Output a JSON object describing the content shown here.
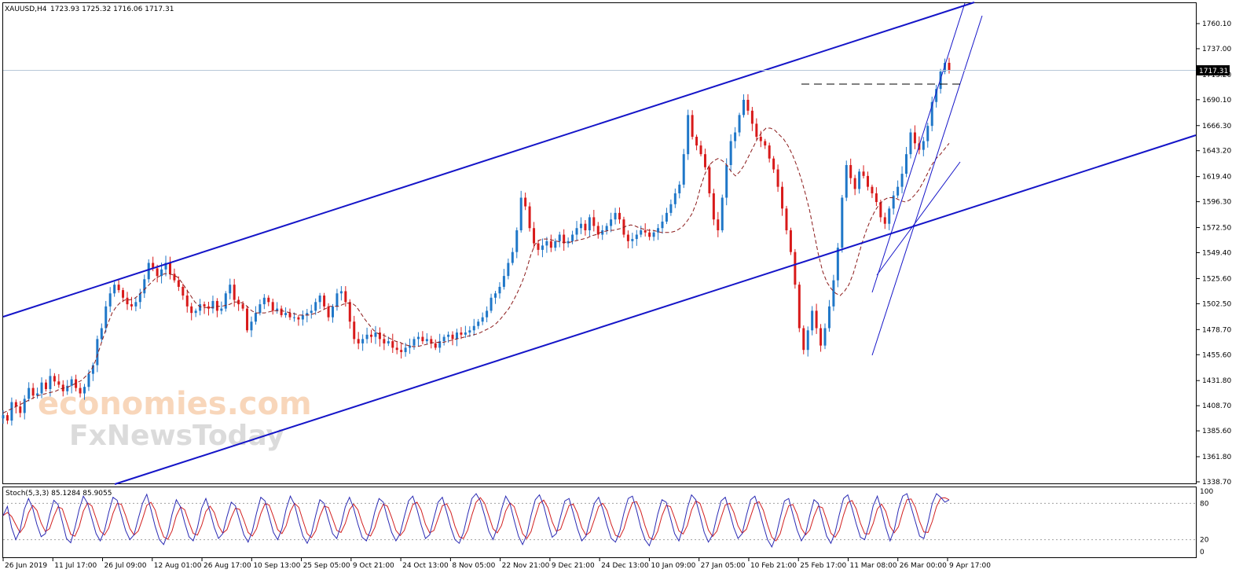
{
  "header": {
    "symbol": "XAUUSD,H4",
    "ohlc": "1723.93 1725.32 1716.06 1717.31"
  },
  "price_label": "1717.31",
  "watermark": {
    "line1": "economies.com",
    "line2": "FxNewsToday"
  },
  "stoch": {
    "label": "Stoch(5,3,3) 85.1284 85.9055",
    "levels": [
      "100",
      "80",
      "20",
      "0"
    ]
  },
  "colors": {
    "bull": "#1f77c8",
    "bear": "#d81a1a",
    "channel": "#1515c8",
    "ma": "#8b1a1a",
    "stoch_main": "#2b2bb4",
    "stoch_signal": "#d22020"
  },
  "chart_data": {
    "type": "line",
    "title": "",
    "ylabel": "",
    "xlabel": "",
    "ylim": [
      1338.7,
      1783.0
    ],
    "price_ticks": [
      "1760.10",
      "1737.00",
      "1713.20",
      "1690.10",
      "1666.30",
      "1643.20",
      "1619.40",
      "1596.30",
      "1572.50",
      "1549.40",
      "1525.60",
      "1502.50",
      "1478.70",
      "1455.60",
      "1431.80",
      "1408.70",
      "1385.60",
      "1361.80",
      "1338.70"
    ],
    "date_ticks": [
      "26 Jun 2019",
      "11 Jul 17:00",
      "26 Jul 09:00",
      "12 Aug 01:00",
      "26 Aug 17:00",
      "10 Sep 13:00",
      "25 Sep 05:00",
      "9 Oct 21:00",
      "24 Oct 13:00",
      "8 Nov 05:00",
      "22 Nov 21:00",
      "9 Dec 21:00",
      "24 Dec 13:00",
      "10 Jan 09:00",
      "27 Jan 05:00",
      "10 Feb 21:00",
      "25 Feb 17:00",
      "11 Mar 08:00",
      "26 Mar 00:00",
      "9 Apr 17:00"
    ],
    "series": [
      {
        "values": [
          1400,
          1395,
          1412,
          1408,
          1402,
          1415,
          1425,
          1418,
          1420,
          1430,
          1424,
          1436,
          1431,
          1428,
          1422,
          1427,
          1433,
          1425,
          1420,
          1426,
          1438,
          1446,
          1470,
          1480,
          1500,
          1512,
          1520,
          1515,
          1508,
          1502,
          1500,
          1504,
          1512,
          1525,
          1540,
          1535,
          1528,
          1534,
          1540,
          1530,
          1524,
          1518,
          1510,
          1500,
          1494,
          1496,
          1502,
          1500,
          1498,
          1505,
          1496,
          1498,
          1512,
          1520,
          1506,
          1502,
          1498,
          1478,
          1486,
          1494,
          1502,
          1508,
          1504,
          1496,
          1498,
          1492,
          1494,
          1490,
          1490,
          1488,
          1492,
          1494,
          1496,
          1504,
          1510,
          1500,
          1490,
          1500,
          1512,
          1514,
          1504,
          1486,
          1470,
          1466,
          1470,
          1474,
          1472,
          1476,
          1470,
          1466,
          1468,
          1462,
          1460,
          1458,
          1462,
          1464,
          1470,
          1472,
          1468,
          1470,
          1466,
          1462,
          1468,
          1472,
          1474,
          1470,
          1476,
          1474,
          1476,
          1478,
          1482,
          1486,
          1490,
          1496,
          1508,
          1512,
          1518,
          1528,
          1540,
          1550,
          1570,
          1600,
          1592,
          1572,
          1558,
          1552,
          1556,
          1560,
          1554,
          1560,
          1566,
          1558,
          1560,
          1566,
          1572,
          1576,
          1570,
          1582,
          1574,
          1566,
          1570,
          1574,
          1580,
          1586,
          1580,
          1566,
          1560,
          1562,
          1566,
          1570,
          1568,
          1564,
          1568,
          1572,
          1578,
          1586,
          1594,
          1604,
          1612,
          1640,
          1676,
          1656,
          1648,
          1640,
          1628,
          1604,
          1580,
          1570,
          1600,
          1630,
          1652,
          1660,
          1676,
          1690,
          1680,
          1668,
          1656,
          1652,
          1648,
          1636,
          1626,
          1610,
          1590,
          1570,
          1550,
          1520,
          1480,
          1460,
          1478,
          1496,
          1480,
          1464,
          1480,
          1500,
          1524,
          1554,
          1600,
          1630,
          1618,
          1608,
          1624,
          1620,
          1610,
          1604,
          1596,
          1582,
          1576,
          1590,
          1602,
          1610,
          1622,
          1640,
          1660,
          1650,
          1644,
          1652,
          1666,
          1688,
          1700,
          1716,
          1724,
          1717.31
        ],
        "ma": [
          1402,
          1404,
          1406,
          1408,
          1410,
          1412,
          1414,
          1416,
          1418,
          1419,
          1420,
          1421,
          1422,
          1424,
          1425,
          1426,
          1428,
          1430,
          1432,
          1436,
          1440,
          1448,
          1460,
          1472,
          1484,
          1494,
          1500,
          1504,
          1506,
          1506,
          1507,
          1510,
          1514,
          1518,
          1522,
          1526,
          1528,
          1530,
          1530,
          1529,
          1527,
          1522,
          1516,
          1510,
          1504,
          1500,
          1499,
          1499,
          1499,
          1500,
          1500,
          1501,
          1502,
          1504,
          1504,
          1503,
          1500,
          1496,
          1494,
          1494,
          1494,
          1495,
          1496,
          1496,
          1496,
          1495,
          1494,
          1493,
          1492,
          1492,
          1492,
          1493,
          1494,
          1496,
          1498,
          1500,
          1500,
          1500,
          1502,
          1503,
          1503,
          1500,
          1494,
          1488,
          1483,
          1478,
          1475,
          1474,
          1472,
          1470,
          1468,
          1467,
          1465,
          1464,
          1463,
          1463,
          1464,
          1465,
          1466,
          1467,
          1467,
          1467,
          1468,
          1469,
          1470,
          1471,
          1472,
          1473,
          1474,
          1475,
          1477,
          1479,
          1481,
          1484,
          1488,
          1493,
          1498,
          1505,
          1513,
          1522,
          1533,
          1547,
          1557,
          1561,
          1562,
          1562,
          1561,
          1560,
          1559,
          1559,
          1559,
          1560,
          1561,
          1562,
          1563,
          1565,
          1566,
          1568,
          1569,
          1570,
          1570,
          1571,
          1572,
          1574,
          1575,
          1574,
          1572,
          1571,
          1570,
          1570,
          1569,
          1568,
          1568,
          1568,
          1569,
          1571,
          1574,
          1579,
          1585,
          1595,
          1610,
          1622,
          1630,
          1634,
          1636,
          1634,
          1630,
          1624,
          1620,
          1624,
          1630,
          1638,
          1646,
          1654,
          1660,
          1664,
          1664,
          1662,
          1658,
          1654,
          1648,
          1640,
          1630,
          1618,
          1604,
          1588,
          1568,
          1548,
          1532,
          1522,
          1516,
          1512,
          1510,
          1514,
          1520,
          1530,
          1544,
          1558,
          1570,
          1580,
          1588,
          1594,
          1598,
          1600,
          1600,
          1599,
          1597,
          1596,
          1598,
          1602,
          1607,
          1614,
          1622,
          1630,
          1636,
          1640,
          1645,
          1650
        ]
      }
    ],
    "stoch_values": [
      60,
      75,
      40,
      20,
      35,
      70,
      88,
      72,
      45,
      25,
      30,
      60,
      85,
      78,
      50,
      22,
      15,
      40,
      70,
      92,
      80,
      55,
      30,
      18,
      35,
      65,
      90,
      85,
      60,
      35,
      20,
      28,
      55,
      80,
      95,
      70,
      42,
      20,
      12,
      30,
      62,
      86,
      74,
      48,
      25,
      18,
      40,
      72,
      88,
      66,
      40,
      22,
      30,
      58,
      82,
      76,
      52,
      28,
      16,
      34,
      64,
      90,
      84,
      58,
      32,
      20,
      38,
      70,
      92,
      78,
      50,
      26,
      14,
      30,
      60,
      86,
      80,
      54,
      30,
      22,
      44,
      74,
      90,
      72,
      46,
      24,
      18,
      36,
      66,
      88,
      82,
      56,
      32,
      18,
      30,
      58,
      84,
      92,
      70,
      44,
      22,
      28,
      56,
      82,
      90,
      66,
      40,
      20,
      14,
      32,
      62,
      88,
      96,
      84,
      60,
      34,
      20,
      40,
      70,
      92,
      80,
      52,
      26,
      12,
      28,
      60,
      86,
      94,
      76,
      48,
      24,
      30,
      58,
      84,
      88,
      64,
      38,
      18,
      26,
      54,
      80,
      90,
      70,
      44,
      22,
      16,
      34,
      64,
      88,
      92,
      68,
      40,
      20,
      10,
      30,
      62,
      86,
      82,
      56,
      30,
      18,
      40,
      72,
      94,
      86,
      60,
      32,
      16,
      28,
      58,
      84,
      90,
      66,
      40,
      22,
      30,
      60,
      86,
      92,
      70,
      44,
      20,
      8,
      26,
      56,
      84,
      88,
      62,
      36,
      18,
      30,
      60,
      86,
      80,
      52,
      26,
      14,
      32,
      62,
      88,
      94,
      72,
      46,
      24,
      20,
      44,
      76,
      92,
      68,
      40,
      18,
      36,
      70,
      92,
      96,
      74,
      50,
      26,
      22,
      48,
      80,
      96,
      90,
      82,
      85.9
    ]
  }
}
